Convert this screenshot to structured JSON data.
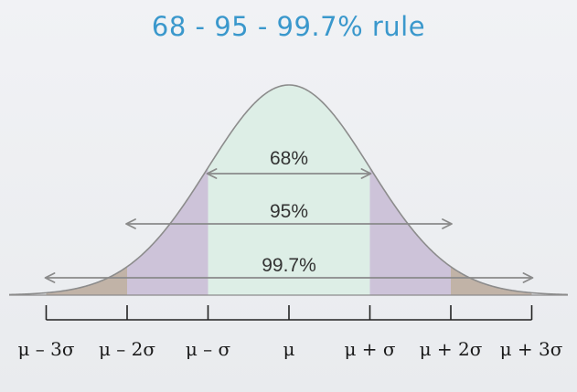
{
  "title": "68 - 95 - 99.7% rule",
  "intervals": [
    {
      "label": "68%",
      "sigma": 1
    },
    {
      "label": "95%",
      "sigma": 2
    },
    {
      "label": "99.7%",
      "sigma": 3
    }
  ],
  "axis_ticks": [
    "μ – 3σ",
    "μ – 2σ",
    "μ – σ",
    "μ",
    "μ + σ",
    "μ + 2σ",
    "μ + 3σ"
  ],
  "colors": {
    "title": "#3a98cc",
    "band_1sigma": "#ddeee6",
    "band_2sigma": "#cdc3d9",
    "band_3sigma": "#c1b3a7",
    "curve": "#8c8c8c",
    "arrow": "#8a8a8a",
    "axis": "#222222"
  }
}
